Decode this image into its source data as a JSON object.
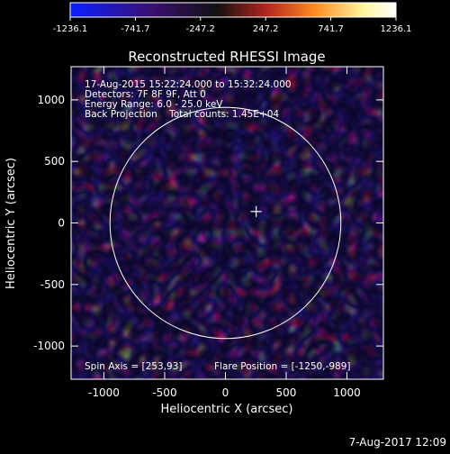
{
  "colorbar": {
    "ticks": [
      "-1236.1",
      "-741.7",
      "-247.2",
      "247.2",
      "741.7",
      "1236.1"
    ],
    "colors": [
      "#0a20ff",
      "#3a1070",
      "#111111",
      "#b0241f",
      "#ff8a20",
      "#fff6a0",
      "#ffffff"
    ]
  },
  "plot": {
    "title": "Reconstructed RHESSI Image",
    "xlabel": "Heliocentric X (arcsec)",
    "ylabel": "Heliocentric Y (arcsec)",
    "xticks": [
      "-1000",
      "-500",
      "0",
      "500",
      "1000"
    ],
    "yticks": [
      "1000",
      "500",
      "0",
      "-500",
      "-1000"
    ]
  },
  "annotations": {
    "line1": "17-Aug-2015 15:22:24.000 to 15:32:24.000",
    "line2": "Detectors: 7F 8F 9F, Att 0",
    "line3": "Energy Range: 6.0 - 25.0 keV",
    "line4": "Back Projection    Total counts: 1.45E+04",
    "spin_axis": "Spin Axis = [253,93]",
    "flare_position": "Flare Position = [-1250,-989]"
  },
  "footer": {
    "timestamp": "7-Aug-2017 12:09"
  },
  "chart_data": {
    "type": "heatmap",
    "title": "Reconstructed RHESSI Image",
    "xlabel": "Heliocentric X (arcsec)",
    "ylabel": "Heliocentric Y (arcsec)",
    "xlim": [
      -1270,
      1300
    ],
    "ylim": [
      -1270,
      1270
    ],
    "zlim": [
      -1236.1,
      1236.1
    ],
    "xticks": [
      -1000,
      -500,
      0,
      500,
      1000
    ],
    "yticks": [
      -1000,
      -500,
      0,
      500,
      1000
    ],
    "colorbar_ticks": [
      -1236.1,
      -741.7,
      -247.2,
      247.2,
      741.7,
      1236.1
    ],
    "solar_limb": {
      "center": [
        0,
        0
      ],
      "radius_arcsec": 950
    },
    "spin_axis": [
      253,
      93
    ]
  }
}
